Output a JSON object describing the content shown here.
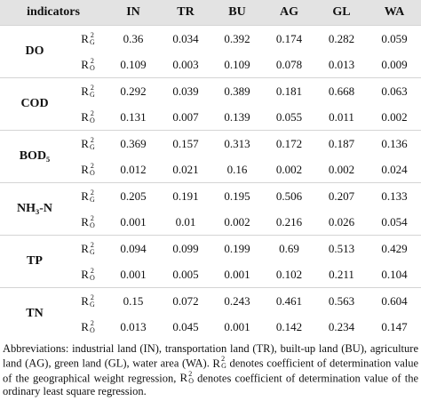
{
  "table": {
    "header": [
      "indicators",
      "IN",
      "TR",
      "BU",
      "AG",
      "GL",
      "WA"
    ],
    "groups": [
      {
        "indicator": "DO",
        "rows": [
          {
            "symbol": "R",
            "sup": "2",
            "sub": "G",
            "values": [
              "0.36",
              "0.034",
              "0.392",
              "0.174",
              "0.282",
              "0.059"
            ]
          },
          {
            "symbol": "R",
            "sup": "2",
            "sub": "O",
            "values": [
              "0.109",
              "0.003",
              "0.109",
              "0.078",
              "0.013",
              "0.009"
            ]
          }
        ]
      },
      {
        "indicator": "COD",
        "rows": [
          {
            "symbol": "R",
            "sup": "2",
            "sub": "G",
            "values": [
              "0.292",
              "0.039",
              "0.389",
              "0.181",
              "0.668",
              "0.063"
            ]
          },
          {
            "symbol": "R",
            "sup": "2",
            "sub": "O",
            "values": [
              "0.131",
              "0.007",
              "0.139",
              "0.055",
              "0.011",
              "0.002"
            ]
          }
        ]
      },
      {
        "indicator": "BOD₅",
        "rows": [
          {
            "symbol": "R",
            "sup": "2",
            "sub": "G",
            "values": [
              "0.369",
              "0.157",
              "0.313",
              "0.172",
              "0.187",
              "0.136"
            ]
          },
          {
            "symbol": "R",
            "sup": "2",
            "sub": "O",
            "values": [
              "0.012",
              "0.021",
              "0.16",
              "0.002",
              "0.002",
              "0.024"
            ]
          }
        ]
      },
      {
        "indicator": "NH₃-N",
        "rows": [
          {
            "symbol": "R",
            "sup": "2",
            "sub": "G",
            "values": [
              "0.205",
              "0.191",
              "0.195",
              "0.506",
              "0.207",
              "0.133"
            ]
          },
          {
            "symbol": "R",
            "sup": "2",
            "sub": "O",
            "values": [
              "0.001",
              "0.01",
              "0.002",
              "0.216",
              "0.026",
              "0.054"
            ]
          }
        ]
      },
      {
        "indicator": "TP",
        "rows": [
          {
            "symbol": "R",
            "sup": "2",
            "sub": "G",
            "values": [
              "0.094",
              "0.099",
              "0.199",
              "0.69",
              "0.513",
              "0.429"
            ]
          },
          {
            "symbol": "R",
            "sup": "2",
            "sub": "O",
            "values": [
              "0.001",
              "0.005",
              "0.001",
              "0.102",
              "0.211",
              "0.104"
            ]
          }
        ]
      },
      {
        "indicator": "TN",
        "rows": [
          {
            "symbol": "R",
            "sup": "2",
            "sub": "G",
            "values": [
              "0.15",
              "0.072",
              "0.243",
              "0.461",
              "0.563",
              "0.604"
            ]
          },
          {
            "symbol": "R",
            "sup": "2",
            "sub": "O",
            "values": [
              "0.013",
              "0.045",
              "0.001",
              "0.142",
              "0.234",
              "0.147"
            ]
          }
        ]
      }
    ]
  },
  "note": [
    "Abbreviations: industrial land (IN), transportation land (TR), built-up land (BU), agriculture land (AG), green land (GL), water area (WA).",
    {
      "symbol": "R",
      "sup": "2",
      "sub": "G"
    },
    "denotes coefficient of determination value of the geographical weight regression,",
    {
      "symbol": "R",
      "sup": "2",
      "sub": "O"
    },
    "denotes coefficient of determination value of the ordinary least square regression."
  ]
}
